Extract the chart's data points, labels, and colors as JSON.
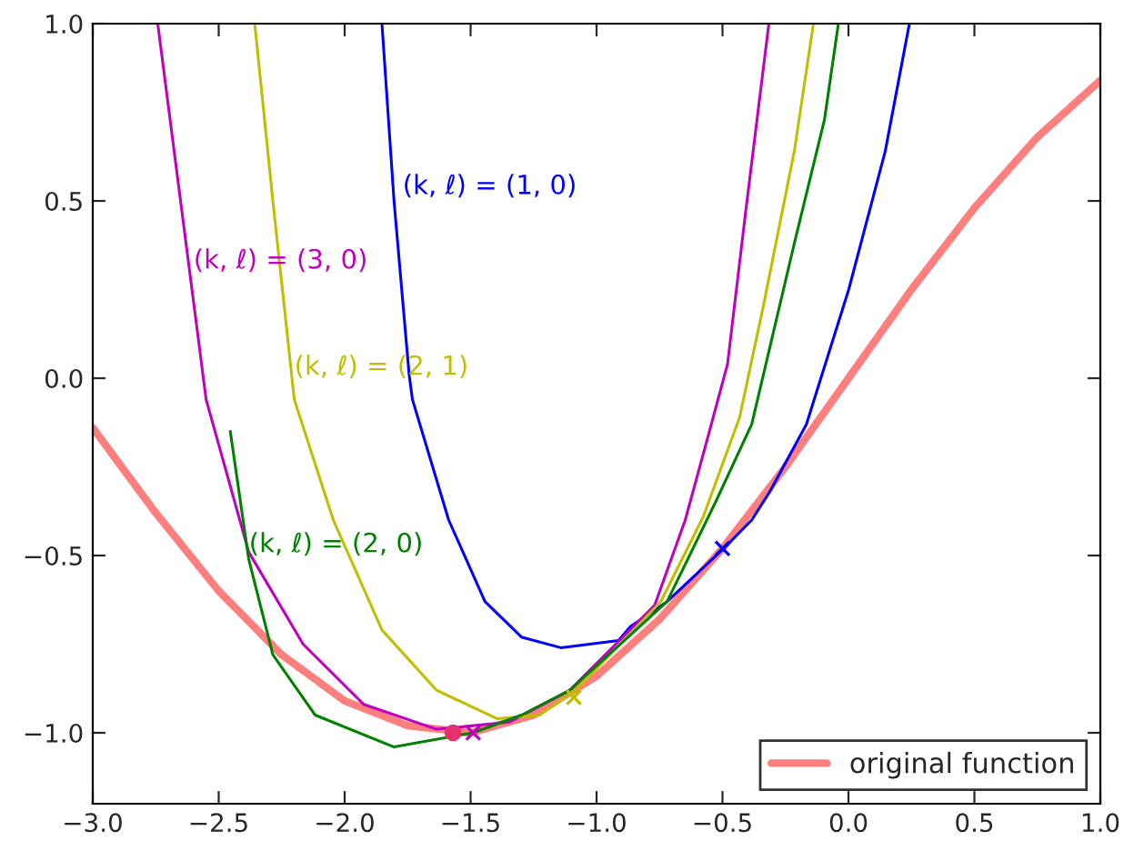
{
  "chart_data": {
    "type": "line",
    "xlim": [
      -3.0,
      1.0
    ],
    "ylim": [
      -1.2,
      1.0
    ],
    "xticks": [
      {
        "value": -3.0,
        "label": "−3.0"
      },
      {
        "value": -2.5,
        "label": "−2.5"
      },
      {
        "value": -2.0,
        "label": "−2.0"
      },
      {
        "value": -1.5,
        "label": "−1.5"
      },
      {
        "value": -1.0,
        "label": "−1.0"
      },
      {
        "value": -0.5,
        "label": "−0.5"
      },
      {
        "value": 0.0,
        "label": "0.0"
      },
      {
        "value": 0.5,
        "label": "0.5"
      },
      {
        "value": 1.0,
        "label": "1.0"
      }
    ],
    "yticks": [
      {
        "value": -1.0,
        "label": "−1.0"
      },
      {
        "value": -0.5,
        "label": "−0.5"
      },
      {
        "value": 0.0,
        "label": "0.0"
      },
      {
        "value": 0.5,
        "label": "0.5"
      },
      {
        "value": 1.0,
        "label": "1.0"
      }
    ],
    "grid": false,
    "legend": "bottom right",
    "series": [
      {
        "name": "original function",
        "color": "#ff7f7f",
        "x": [
          -3.0,
          -2.75,
          -2.5,
          -2.25,
          -2.0,
          -1.75,
          -1.5,
          -1.25,
          -1.0,
          -0.75,
          -0.5,
          -0.25,
          0.0,
          0.25,
          0.5,
          0.75,
          1.0
        ],
        "values": [
          -0.14,
          -0.38,
          -0.6,
          -0.78,
          -0.91,
          -0.98,
          -1.0,
          -0.95,
          -0.84,
          -0.68,
          -0.48,
          -0.25,
          0.0,
          0.25,
          0.48,
          0.68,
          0.84
        ]
      },
      {
        "name": "(k, ℓ) = (1, 0)",
        "color": "#0000ff",
        "x": [
          -1.852,
          -1.804,
          -1.744,
          -1.731,
          -1.587,
          -1.443,
          -1.298,
          -1.142,
          -0.913,
          -0.865,
          -0.72,
          -0.495,
          -0.384,
          -0.312,
          -0.167,
          0.001,
          0.146,
          0.242
        ],
        "values": [
          1.0,
          0.5,
          0.01,
          -0.06,
          -0.4,
          -0.63,
          -0.73,
          -0.76,
          -0.74,
          -0.7,
          -0.63,
          -0.48,
          -0.4,
          -0.32,
          -0.13,
          0.25,
          0.64,
          1.0
        ]
      },
      {
        "name": "(k, ℓ) = (3, 0)",
        "color": "#bf00bf",
        "x": [
          -2.742,
          -2.55,
          -2.381,
          -2.165,
          -1.924,
          -1.635,
          -1.347,
          -1.106,
          -0.769,
          -0.648,
          -0.552,
          -0.48,
          -0.408,
          -0.316
        ],
        "values": [
          1.0,
          -0.06,
          -0.49,
          -0.75,
          -0.92,
          -0.99,
          -0.97,
          -0.88,
          -0.64,
          -0.4,
          -0.15,
          0.04,
          0.47,
          1.0
        ]
      },
      {
        "name": "(k, ℓ) = (2, 1)",
        "color": "#bfbf00",
        "x": [
          -2.357,
          -2.285,
          -2.2,
          -2.045,
          -1.852,
          -1.635,
          -1.395,
          -1.226,
          -1.082,
          -0.745,
          -0.576,
          -0.432,
          -0.336,
          -0.215,
          -0.139
        ],
        "values": [
          1.0,
          0.5,
          -0.06,
          -0.4,
          -0.71,
          -0.88,
          -0.96,
          -0.95,
          -0.88,
          -0.63,
          -0.39,
          -0.11,
          0.21,
          0.64,
          1.0
        ]
      },
      {
        "name": "(k, ℓ) = (2, 0)",
        "color": "#008000",
        "x": [
          -2.454,
          -2.381,
          -2.285,
          -2.117,
          -1.804,
          -1.491,
          -1.298,
          -1.106,
          -0.72,
          -0.528,
          -0.384,
          -0.215,
          -0.095,
          -0.04
        ],
        "values": [
          -0.15,
          -0.51,
          -0.78,
          -0.95,
          -1.04,
          -1.0,
          -0.95,
          -0.88,
          -0.63,
          -0.35,
          -0.13,
          0.38,
          0.73,
          1.0
        ]
      },
      {
        "type": "scatter",
        "marker": "circle",
        "color": "#e8306e",
        "x": [
          -1.57
        ],
        "values": [
          -1.0
        ]
      },
      {
        "type": "scatter",
        "marker": "cross",
        "color": "#bf00bf",
        "x": [
          -1.49
        ],
        "values": [
          -1.0
        ]
      },
      {
        "type": "scatter",
        "marker": "cross",
        "color": "#bfbf00",
        "x": [
          -1.09
        ],
        "values": [
          -0.9
        ]
      },
      {
        "type": "scatter",
        "marker": "cross",
        "color": "#0000ff",
        "x": [
          -0.5
        ],
        "values": [
          -0.48
        ]
      }
    ]
  }
}
